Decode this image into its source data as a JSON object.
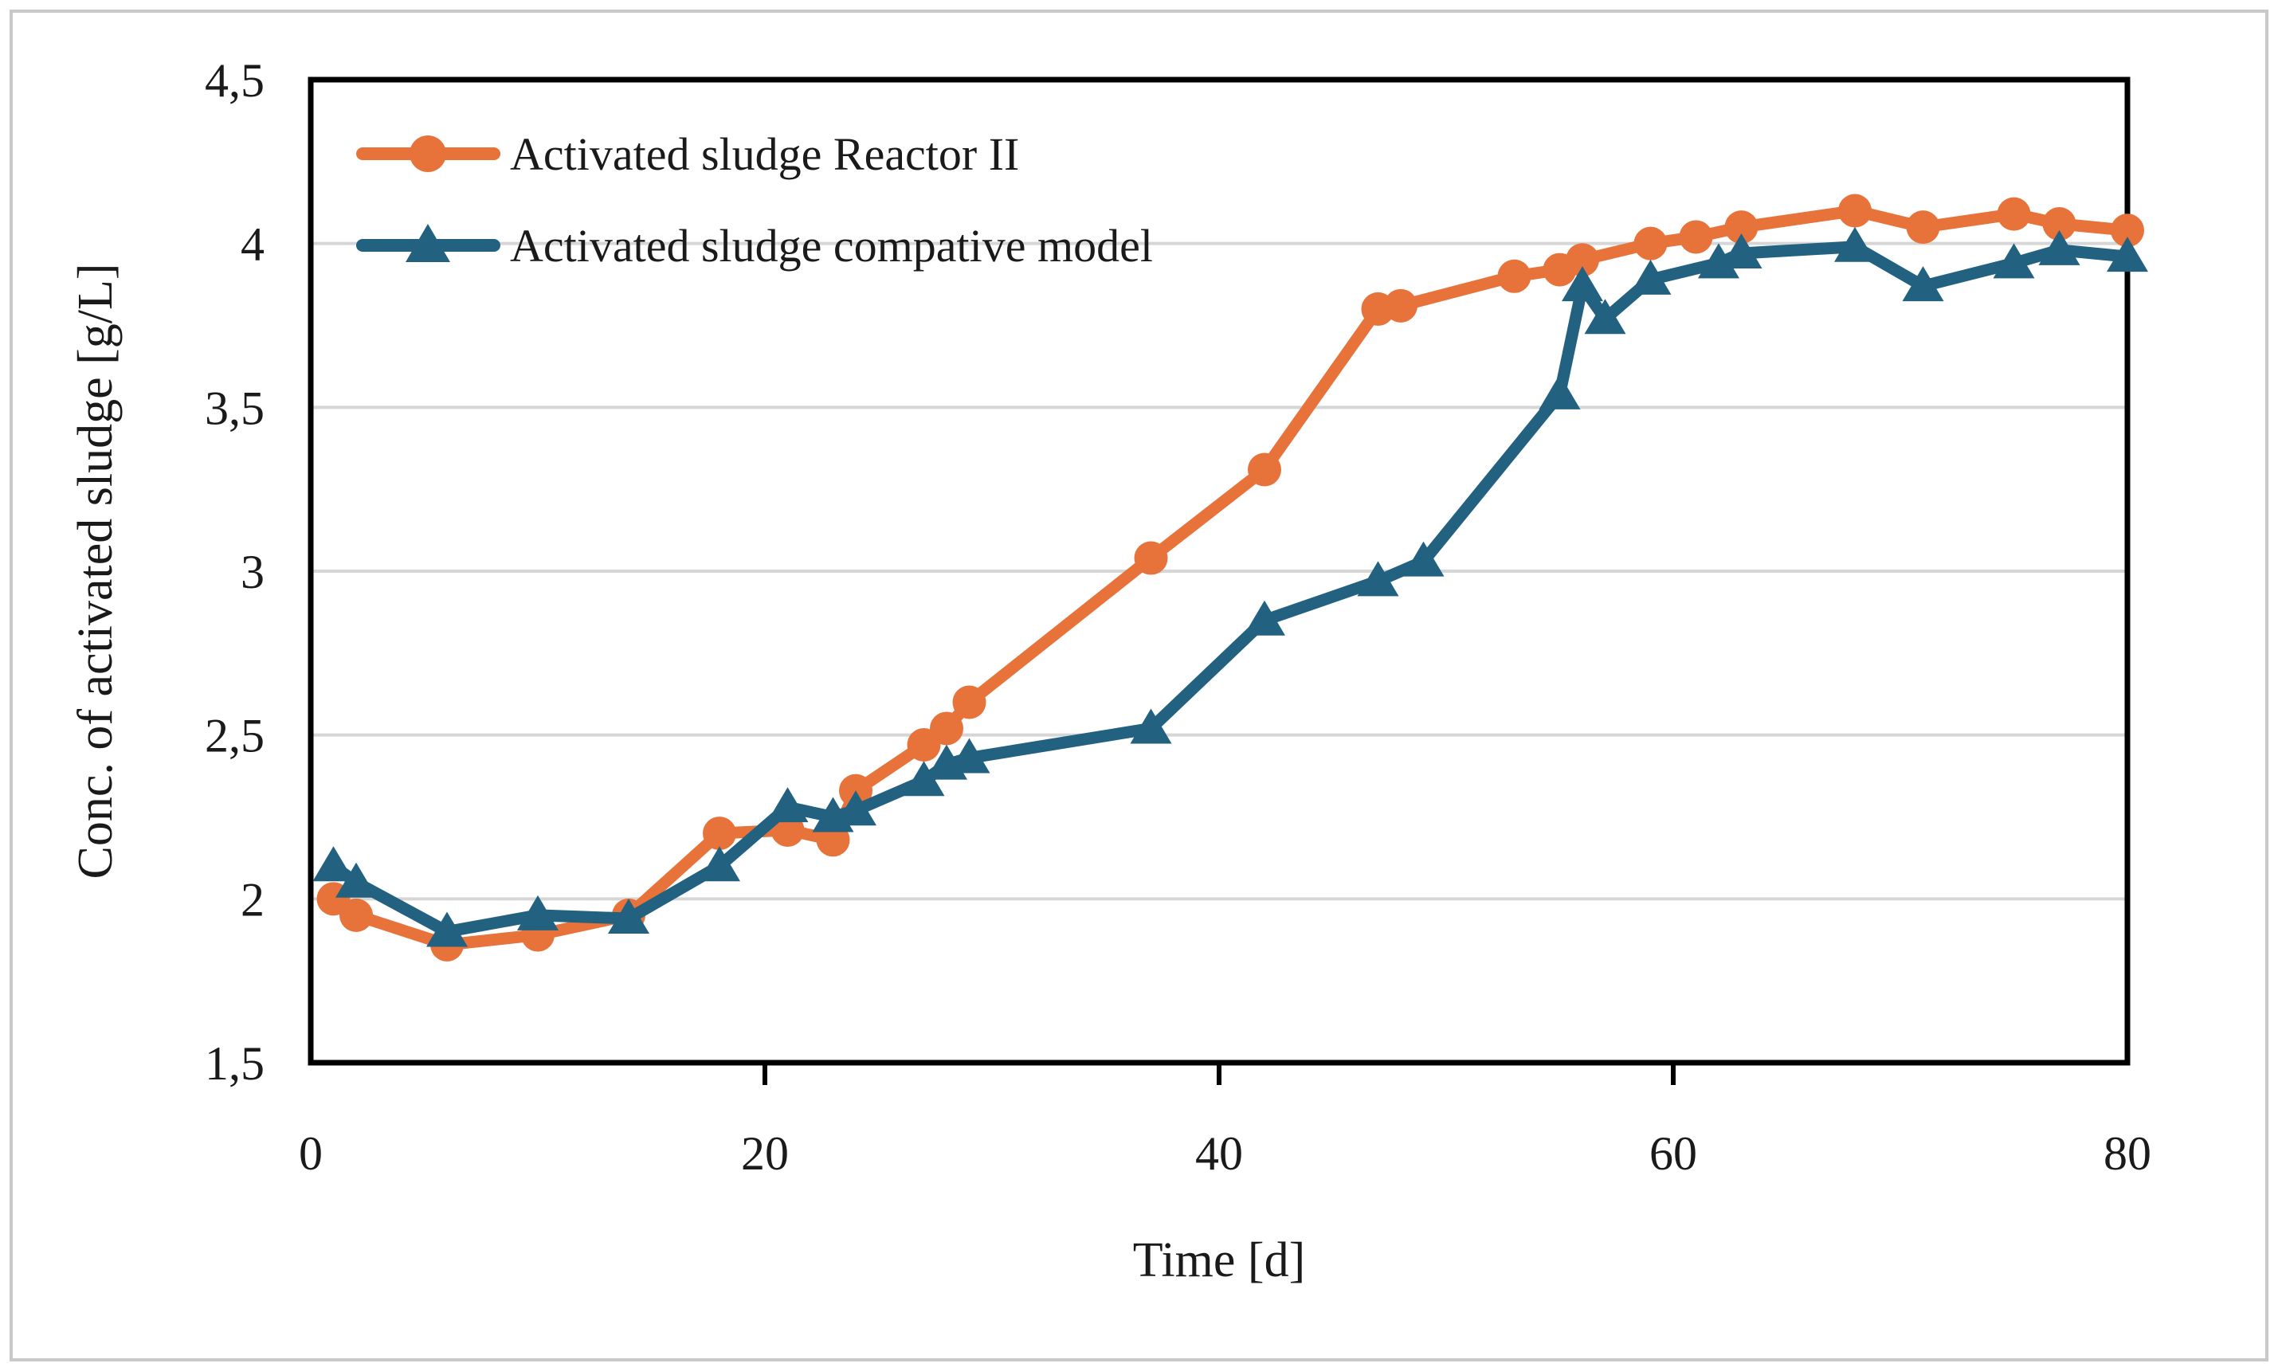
{
  "figure": {
    "background": "#ffffff",
    "outer_border_color": "#c9c9c9",
    "plot_border_color": "#000000",
    "gridline_color": "#d6d6d6"
  },
  "chart_data": {
    "type": "line",
    "title": "",
    "xlabel": "Time [d]",
    "ylabel": "Conc. of activated sludge [g/L]",
    "xlim": [
      0,
      80
    ],
    "ylim": [
      1.5,
      4.5
    ],
    "x_ticks": [
      0,
      20,
      40,
      60,
      80
    ],
    "x_tick_labels": [
      "0",
      "20",
      "40",
      "60",
      "80"
    ],
    "x_tick_marks": [
      20,
      40,
      60
    ],
    "y_ticks": [
      1.5,
      2,
      2.5,
      3,
      3.5,
      4,
      4.5
    ],
    "y_tick_labels": [
      "1,5",
      "2",
      "2,5",
      "3",
      "3,5",
      "4",
      "4,5"
    ],
    "grid": "horizontal",
    "gridline_values": [
      2,
      2.5,
      3,
      3.5,
      4
    ],
    "legend_position": "top-left-inside",
    "series": [
      {
        "name": "Activated sludge Reactor II",
        "color": "#E7733B",
        "marker": "circle",
        "x": [
          1,
          2,
          6,
          10,
          14,
          18,
          21,
          23,
          24,
          27,
          28,
          29,
          37,
          42,
          47,
          48,
          53,
          55,
          56,
          59,
          61,
          63,
          68,
          71,
          75,
          77,
          80
        ],
        "y": [
          2.0,
          1.95,
          1.86,
          1.89,
          1.95,
          2.2,
          2.21,
          2.18,
          2.33,
          2.47,
          2.52,
          2.6,
          3.04,
          3.31,
          3.8,
          3.81,
          3.9,
          3.92,
          3.95,
          4.0,
          4.02,
          4.05,
          4.1,
          4.05,
          4.09,
          4.06,
          4.04
        ]
      },
      {
        "name": "Activated sludge compative model",
        "color": "#226180",
        "marker": "triangle",
        "x": [
          1,
          2,
          6,
          10,
          14,
          18,
          21,
          23,
          24,
          27,
          28,
          29,
          37,
          42,
          47,
          49,
          55,
          56,
          57,
          59,
          62,
          63,
          68,
          71,
          75,
          77,
          80
        ],
        "y": [
          2.1,
          2.05,
          1.9,
          1.95,
          1.94,
          2.1,
          2.28,
          2.25,
          2.27,
          2.36,
          2.41,
          2.43,
          2.52,
          2.85,
          2.97,
          3.03,
          3.54,
          3.87,
          3.77,
          3.89,
          3.94,
          3.97,
          3.99,
          3.87,
          3.94,
          3.98,
          3.96
        ]
      }
    ]
  }
}
